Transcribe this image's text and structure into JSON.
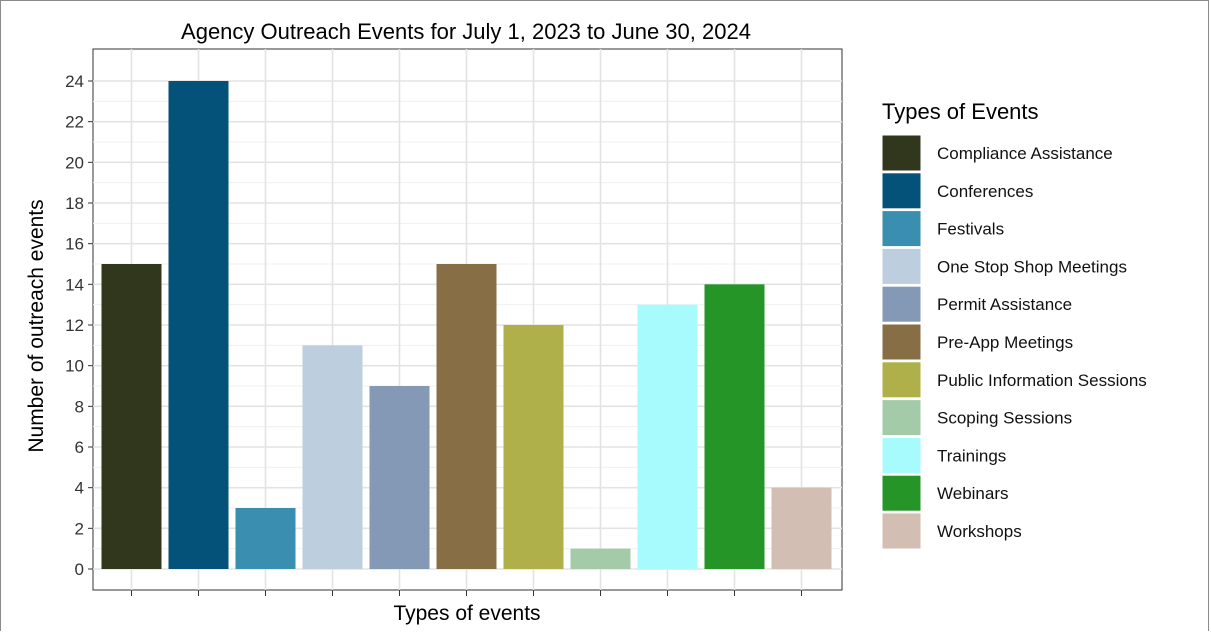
{
  "chart_data": {
    "type": "bar",
    "title": "Agency Outreach Events for July 1, 2023 to June 30, 2024",
    "xlabel": "Types of events",
    "ylabel": "Number of outreach events",
    "ylim": [
      0,
      25.5
    ],
    "yticks": [
      "0",
      "2",
      "4",
      "6",
      "8",
      "10",
      "12",
      "14",
      "16",
      "18",
      "20",
      "22",
      "24"
    ],
    "categories": [
      "Compliance Assistance",
      "Conferences",
      "Festivals",
      "One Stop Shop Meetings",
      "Permit Assistance",
      "Pre-App Meetings",
      "Public Information Sessions",
      "Scoping Sessions",
      "Trainings",
      "Webinars",
      "Workshops"
    ],
    "values": [
      15,
      24,
      3,
      11,
      9,
      15,
      12,
      1,
      13,
      14,
      4
    ],
    "colors": [
      "#31371D",
      "#045279",
      "#3A8EB0",
      "#BDCEDE",
      "#8399B6",
      "#876E45",
      "#B0B04B",
      "#A3CBA8",
      "#A7FBFC",
      "#259528",
      "#D2BEB2"
    ],
    "legend_title": "Types of Events",
    "legend_position": "right",
    "grid": true,
    "x_tick_labels_shown": false
  }
}
